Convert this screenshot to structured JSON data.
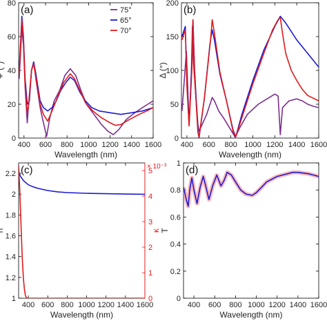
{
  "chart_data": [
    {
      "panel_label": "(a)",
      "type": "line",
      "xlabel": "Wavelength (nm)",
      "ylabel": "Ψ (°)",
      "xlim": [
        350,
        1600
      ],
      "ylim": [
        0,
        80
      ],
      "xticks": [
        "400",
        "600",
        "800",
        "1000",
        "1200",
        "1400",
        "1600"
      ],
      "yticks": [
        "0",
        "20",
        "40",
        "60",
        "80"
      ],
      "legend_position": "top-right",
      "series": [
        {
          "name": "75°",
          "color": "#7b2d8e",
          "points": [
            [
              355,
              35
            ],
            [
              380,
              65
            ],
            [
              395,
              55
            ],
            [
              410,
              30
            ],
            [
              430,
              9
            ],
            [
              445,
              22
            ],
            [
              470,
              40
            ],
            [
              490,
              45
            ],
            [
              510,
              35
            ],
            [
              550,
              18
            ],
            [
              570,
              12
            ],
            [
              610,
              1
            ],
            [
              640,
              12
            ],
            [
              680,
              22
            ],
            [
              730,
              28
            ],
            [
              780,
              37
            ],
            [
              830,
              41
            ],
            [
              880,
              37
            ],
            [
              930,
              28
            ],
            [
              980,
              20
            ],
            [
              1050,
              14
            ],
            [
              1120,
              8
            ],
            [
              1180,
              4
            ],
            [
              1230,
              2
            ],
            [
              1280,
              5
            ],
            [
              1350,
              11
            ],
            [
              1430,
              15
            ],
            [
              1500,
              18
            ],
            [
              1550,
              20
            ],
            [
              1600,
              22
            ]
          ]
        },
        {
          "name": "65°",
          "color": "#1a1ad4",
          "points": [
            [
              355,
              40
            ],
            [
              380,
              72
            ],
            [
              395,
              60
            ],
            [
              410,
              35
            ],
            [
              430,
              20
            ],
            [
              450,
              22
            ],
            [
              470,
              40
            ],
            [
              490,
              45
            ],
            [
              510,
              38
            ],
            [
              550,
              22
            ],
            [
              580,
              18
            ],
            [
              620,
              16
            ],
            [
              660,
              18
            ],
            [
              700,
              22
            ],
            [
              740,
              28
            ],
            [
              790,
              33
            ],
            [
              830,
              36
            ],
            [
              870,
              34
            ],
            [
              920,
              27
            ],
            [
              970,
              22
            ],
            [
              1030,
              18
            ],
            [
              1100,
              16
            ],
            [
              1200,
              15
            ],
            [
              1300,
              14
            ],
            [
              1400,
              15
            ],
            [
              1500,
              16
            ],
            [
              1600,
              18
            ]
          ]
        },
        {
          "name": "70°",
          "color": "#e01919",
          "points": [
            [
              355,
              38
            ],
            [
              380,
              70
            ],
            [
              395,
              58
            ],
            [
              410,
              32
            ],
            [
              430,
              15
            ],
            [
              445,
              20
            ],
            [
              470,
              40
            ],
            [
              490,
              44
            ],
            [
              510,
              36
            ],
            [
              550,
              20
            ],
            [
              580,
              14
            ],
            [
              620,
              10
            ],
            [
              660,
              16
            ],
            [
              710,
              24
            ],
            [
              770,
              33
            ],
            [
              830,
              38
            ],
            [
              870,
              35
            ],
            [
              920,
              28
            ],
            [
              970,
              21
            ],
            [
              1040,
              16
            ],
            [
              1120,
              12
            ],
            [
              1200,
              9
            ],
            [
              1250,
              7.5
            ],
            [
              1300,
              8
            ],
            [
              1380,
              11
            ],
            [
              1470,
              14
            ],
            [
              1540,
              16
            ],
            [
              1600,
              18
            ]
          ]
        }
      ]
    },
    {
      "panel_label": "(b)",
      "type": "line",
      "xlabel": "Wavelength (nm)",
      "ylabel": "Δ (°)",
      "xlim": [
        350,
        1600
      ],
      "ylim": [
        0,
        200
      ],
      "xticks": [
        "400",
        "600",
        "800",
        "1000",
        "1200",
        "1400",
        "1600"
      ],
      "yticks": [
        "0",
        "50",
        "100",
        "150",
        "200"
      ],
      "series": [
        {
          "name": "75°",
          "color": "#7b2d8e",
          "points": [
            [
              355,
              40
            ],
            [
              395,
              128
            ],
            [
              420,
              20
            ],
            [
              440,
              95
            ],
            [
              450,
              165
            ],
            [
              460,
              110
            ],
            [
              500,
              20
            ],
            [
              510,
              10
            ],
            [
              580,
              35
            ],
            [
              630,
              60
            ],
            [
              650,
              55
            ],
            [
              690,
              40
            ],
            [
              740,
              28
            ],
            [
              800,
              12
            ],
            [
              840,
              1
            ],
            [
              880,
              15
            ],
            [
              950,
              35
            ],
            [
              1050,
              50
            ],
            [
              1150,
              60
            ],
            [
              1200,
              65
            ],
            [
              1230,
              62
            ],
            [
              1250,
              5
            ],
            [
              1270,
              45
            ],
            [
              1330,
              55
            ],
            [
              1400,
              58
            ],
            [
              1450,
              55
            ],
            [
              1500,
              50
            ],
            [
              1550,
              47
            ],
            [
              1600,
              45
            ]
          ]
        },
        {
          "name": "65°",
          "color": "#1a1ad4",
          "points": [
            [
              355,
              150
            ],
            [
              385,
              165
            ],
            [
              400,
              80
            ],
            [
              420,
              20
            ],
            [
              445,
              110
            ],
            [
              455,
              175
            ],
            [
              470,
              100
            ],
            [
              500,
              10
            ],
            [
              510,
              0
            ],
            [
              560,
              60
            ],
            [
              610,
              140
            ],
            [
              630,
              160
            ],
            [
              650,
              145
            ],
            [
              700,
              95
            ],
            [
              760,
              55
            ],
            [
              820,
              12
            ],
            [
              845,
              2
            ],
            [
              900,
              35
            ],
            [
              1000,
              85
            ],
            [
              1100,
              130
            ],
            [
              1200,
              165
            ],
            [
              1250,
              180
            ],
            [
              1300,
              170
            ],
            [
              1400,
              145
            ],
            [
              1500,
              125
            ],
            [
              1600,
              105
            ]
          ]
        },
        {
          "name": "70°",
          "color": "#e01919",
          "points": [
            [
              355,
              145
            ],
            [
              385,
              160
            ],
            [
              400,
              75
            ],
            [
              420,
              18
            ],
            [
              445,
              100
            ],
            [
              455,
              175
            ],
            [
              470,
              90
            ],
            [
              500,
              8
            ],
            [
              510,
              2
            ],
            [
              560,
              60
            ],
            [
              615,
              145
            ],
            [
              630,
              175
            ],
            [
              650,
              155
            ],
            [
              700,
              98
            ],
            [
              760,
              55
            ],
            [
              820,
              10
            ],
            [
              845,
              2
            ],
            [
              900,
              30
            ],
            [
              1000,
              80
            ],
            [
              1100,
              125
            ],
            [
              1180,
              160
            ],
            [
              1230,
              175
            ],
            [
              1250,
              178
            ],
            [
              1270,
              155
            ],
            [
              1300,
              125
            ],
            [
              1350,
              100
            ],
            [
              1400,
              85
            ],
            [
              1450,
              72
            ],
            [
              1500,
              63
            ],
            [
              1600,
              55
            ]
          ]
        }
      ]
    },
    {
      "panel_label": "(c)",
      "type": "line",
      "xlabel": "Wavelength (nm)",
      "ylabel_left": "n",
      "ylabel_right": "κ",
      "right_axis_multiplier": "× 10⁻³",
      "xlim": [
        300,
        1600
      ],
      "ylim_left": [
        1,
        2.3
      ],
      "ylim_right": [
        0,
        5.3
      ],
      "xticks": [
        "400",
        "600",
        "800",
        "1000",
        "1200",
        "1400",
        "1600"
      ],
      "yticks_left": [
        "1",
        "1.2",
        "1.4",
        "1.6",
        "1.8",
        "2",
        "2.2"
      ],
      "yticks_right": [
        "0",
        "1",
        "2",
        "3",
        "4",
        "5"
      ],
      "series": [
        {
          "name": "n",
          "axis": "left",
          "color": "#1a1ad4",
          "points": [
            [
              300,
              2.22
            ],
            [
              320,
              2.17
            ],
            [
              350,
              2.13
            ],
            [
              400,
              2.09
            ],
            [
              450,
              2.07
            ],
            [
              500,
              2.055
            ],
            [
              600,
              2.035
            ],
            [
              700,
              2.022
            ],
            [
              800,
              2.015
            ],
            [
              1000,
              2.008
            ],
            [
              1200,
              2.004
            ],
            [
              1400,
              2.001
            ],
            [
              1600,
              1.999
            ]
          ]
        },
        {
          "name": "κ",
          "axis": "right",
          "color": "#e01919",
          "points": [
            [
              300,
              5.2
            ],
            [
              310,
              4.4
            ],
            [
              320,
              3.4
            ],
            [
              330,
              2.3
            ],
            [
              340,
              1.4
            ],
            [
              350,
              0.75
            ],
            [
              360,
              0.35
            ],
            [
              370,
              0.1
            ],
            [
              380,
              0.02
            ],
            [
              390,
              0
            ],
            [
              1600,
              0
            ]
          ]
        }
      ]
    },
    {
      "panel_label": "(d)",
      "type": "line",
      "xlabel": "Wavelength (nm)",
      "ylabel": "T",
      "xlim": [
        300,
        1600
      ],
      "ylim": [
        0,
        1
      ],
      "xticks": [
        "400",
        "600",
        "800",
        "1000",
        "1200",
        "1400",
        "1600"
      ],
      "yticks": [
        "0",
        "0.2",
        "0.4",
        "0.6",
        "0.8",
        "1"
      ],
      "series": [
        {
          "name": "T",
          "color": "#1a1ad4",
          "band_color": "#ff8080",
          "points": [
            [
              300,
              0.82
            ],
            [
              330,
              0.72
            ],
            [
              345,
              0.68
            ],
            [
              360,
              0.8
            ],
            [
              380,
              0.89
            ],
            [
              400,
              0.8
            ],
            [
              430,
              0.7
            ],
            [
              460,
              0.82
            ],
            [
              490,
              0.9
            ],
            [
              510,
              0.84
            ],
            [
              545,
              0.73
            ],
            [
              580,
              0.83
            ],
            [
              620,
              0.91
            ],
            [
              660,
              0.83
            ],
            [
              690,
              0.87
            ],
            [
              720,
              0.93
            ],
            [
              760,
              0.91
            ],
            [
              800,
              0.86
            ],
            [
              850,
              0.8
            ],
            [
              900,
              0.77
            ],
            [
              960,
              0.76
            ],
            [
              1000,
              0.78
            ],
            [
              1050,
              0.82
            ],
            [
              1100,
              0.86
            ],
            [
              1150,
              0.88
            ],
            [
              1200,
              0.9
            ],
            [
              1250,
              0.91
            ],
            [
              1300,
              0.92
            ],
            [
              1350,
              0.93
            ],
            [
              1400,
              0.93
            ],
            [
              1450,
              0.925
            ],
            [
              1500,
              0.92
            ],
            [
              1550,
              0.91
            ],
            [
              1600,
              0.9
            ]
          ]
        }
      ]
    }
  ]
}
